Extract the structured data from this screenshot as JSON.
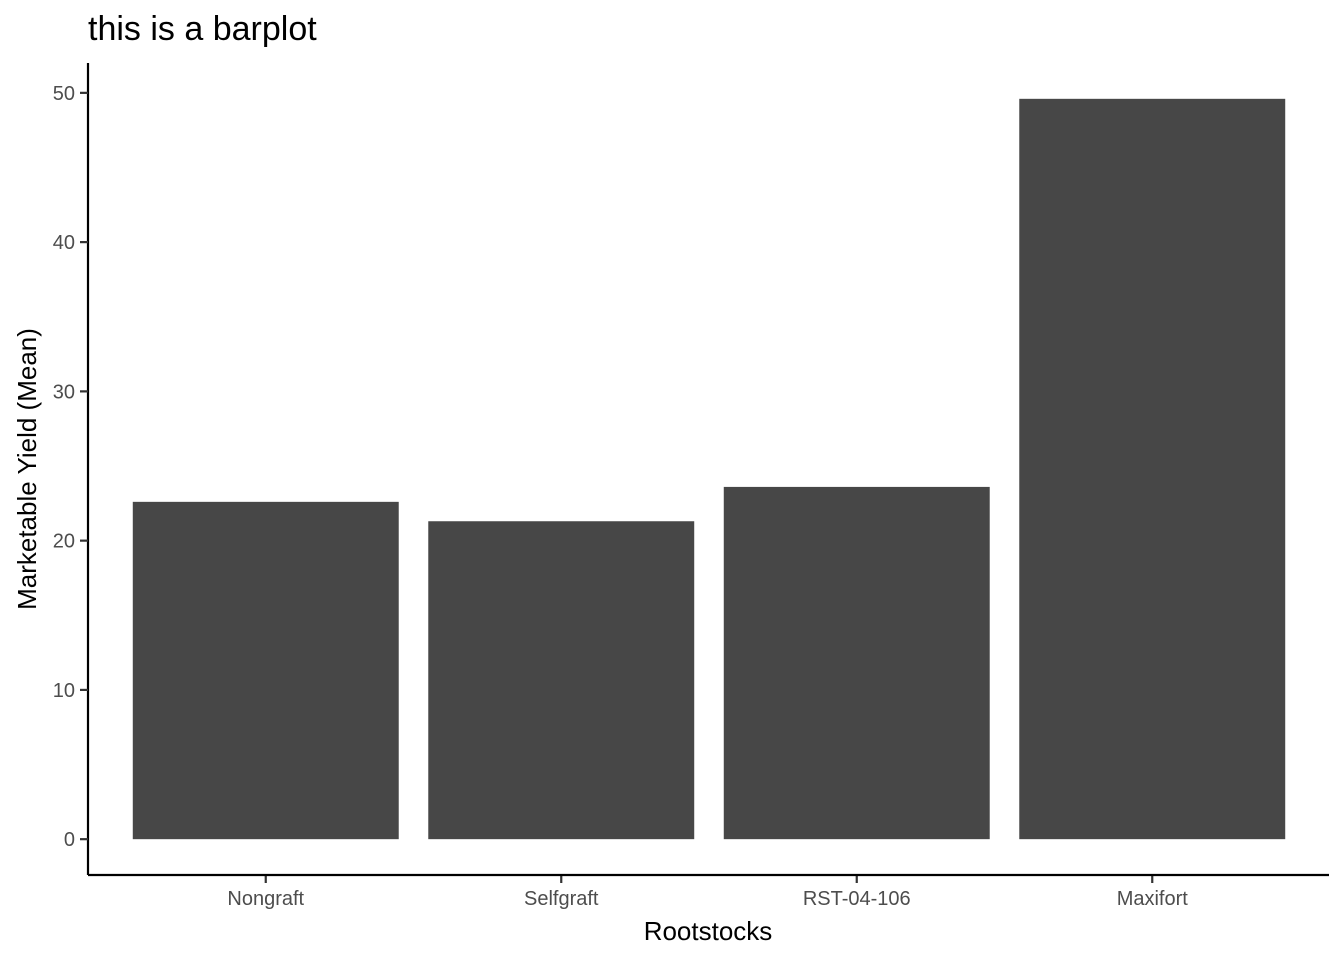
{
  "chart_data": {
    "type": "bar",
    "title": "this is a barplot",
    "xlabel": "Rootstocks",
    "ylabel": "Marketable Yield (Mean)",
    "categories": [
      "Nongraft",
      "Selfgraft",
      "RST-04-106",
      "Maxifort"
    ],
    "values": [
      22.6,
      21.3,
      23.6,
      49.6
    ],
    "ylim": [
      -2.4,
      52
    ],
    "yticks": [
      0,
      10,
      20,
      30,
      40,
      50
    ],
    "bar_color": "#474747",
    "grid": false
  }
}
